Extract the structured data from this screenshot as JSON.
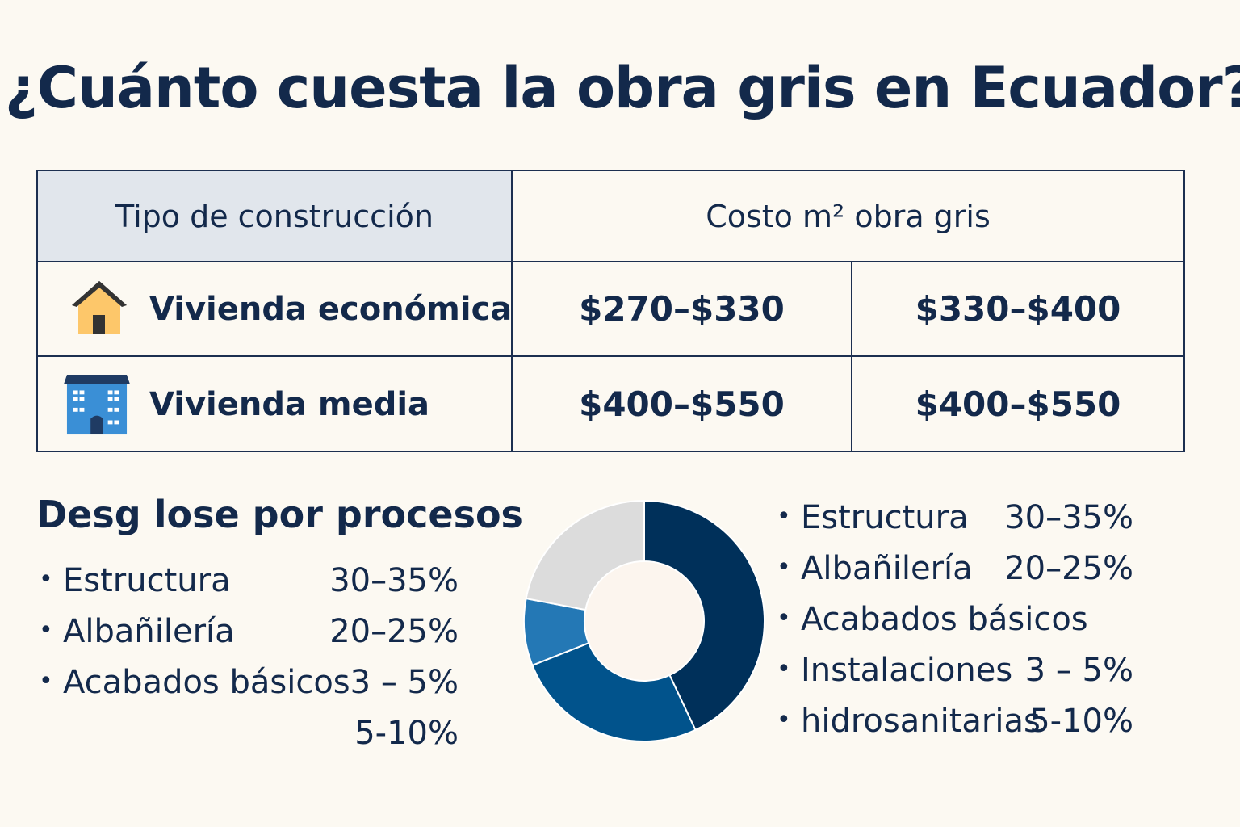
{
  "title": "¿Cuánto cuesta la obra gris en Ecuador?",
  "table": {
    "header_type": "Tipo de construcción",
    "header_cost": "Costo m² obra gris",
    "rows": [
      {
        "icon": "house-icon",
        "label": "Vivienda económica",
        "price1": "$270–$330",
        "price2": "$330–$400"
      },
      {
        "icon": "building-icon",
        "label": "Vivienda media",
        "price1": "$400–$550",
        "price2": "$400–$550"
      }
    ]
  },
  "breakdown": {
    "title": "Desg lose por procesos",
    "left_list": [
      {
        "bullet": "•",
        "label": "Estructura",
        "value": "30–35%"
      },
      {
        "bullet": "•",
        "label": "Albañilería",
        "value": "20–25%"
      },
      {
        "bullet": "•",
        "label": "Acabados básicos",
        "value": "3 – 5%"
      },
      {
        "bullet": "",
        "label": "",
        "value": "5-10%"
      }
    ],
    "right_list": [
      {
        "bullet": "•",
        "label": "Estructura",
        "value": "30–35%"
      },
      {
        "bullet": "•",
        "label": "Albañilería",
        "value": "20–25%"
      },
      {
        "bullet": "•",
        "label": "Acabados básicos",
        "value": ""
      },
      {
        "bullet": "•",
        "label": "Instalaciones",
        "value": "3 – 5%"
      },
      {
        "bullet": "•",
        "label": "hidrosanitarias",
        "value": "5-10%"
      }
    ]
  },
  "chart_data": {
    "type": "pie",
    "style": "donut",
    "slice_fractions": [
      0.43,
      0.26,
      0.09,
      0.22
    ],
    "colors": [
      "#00305a",
      "#01538c",
      "#2478b5",
      "#dcdcdc"
    ]
  },
  "colors": {
    "background": "#fcf9f2",
    "text": "#13294b",
    "header_fill": "#e1e6ec",
    "house_wall": "#fdc76a",
    "house_roof": "#333333",
    "building": "#3a8fd6"
  }
}
